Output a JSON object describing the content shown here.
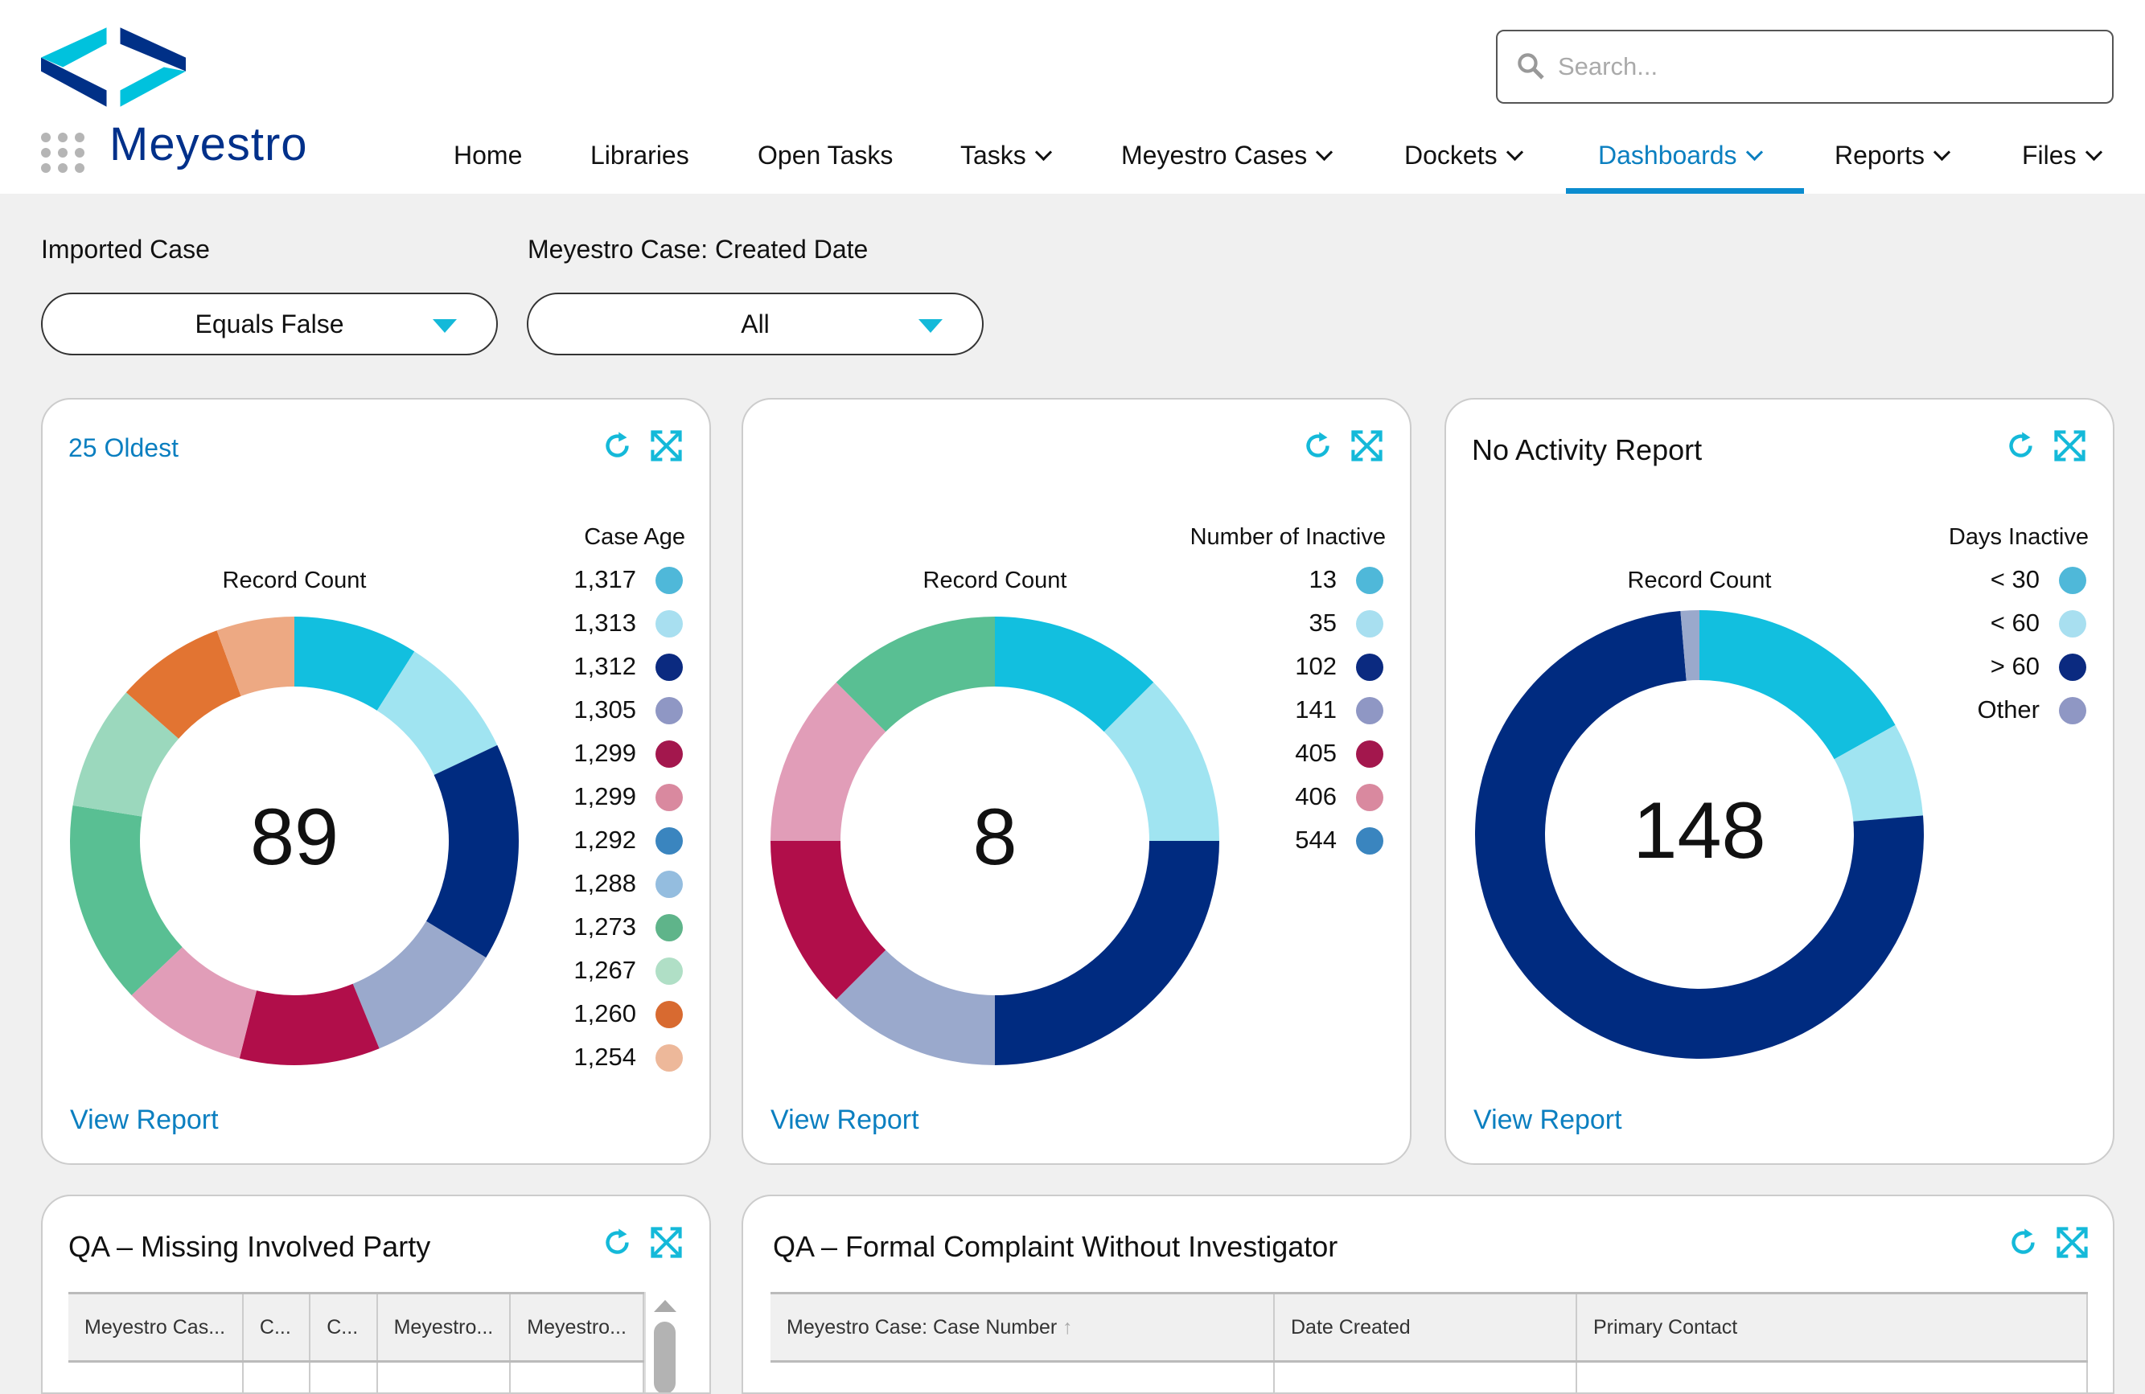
{
  "brand": {
    "name": "Meyestro"
  },
  "search": {
    "placeholder": "Search..."
  },
  "nav": [
    {
      "label": "Home"
    },
    {
      "label": "Libraries"
    },
    {
      "label": "Open Tasks"
    },
    {
      "label": "Tasks",
      "dropdown": true
    },
    {
      "label": "Meyestro Cases",
      "dropdown": true
    },
    {
      "label": "Dockets",
      "dropdown": true
    },
    {
      "label": "Dashboards",
      "dropdown": true,
      "active": true
    },
    {
      "label": "Reports",
      "dropdown": true
    },
    {
      "label": "Files",
      "dropdown": true
    }
  ],
  "filters": [
    {
      "label": "Imported Case",
      "value": "Equals False"
    },
    {
      "label": "Meyestro Case: Created Date",
      "value": "All"
    }
  ],
  "colors": {
    "accent": "#0b7fc0",
    "brand_navy": "#00308a",
    "brand_cyan": "#14b9d9"
  },
  "cards": [
    {
      "title": "25 Oldest",
      "legend_title": "Case Age",
      "measure": "Record Count",
      "total": "89",
      "view_report": "View Report",
      "legend": [
        {
          "label": "1,317",
          "color": "#4fb8d9",
          "count": 8
        },
        {
          "label": "1,313",
          "color": "#a8dff0",
          "count": 8
        },
        {
          "label": "1,312",
          "color": "#0b2a80",
          "count": 14
        },
        {
          "label": "1,305",
          "color": "#8f97c4",
          "count": 9
        },
        {
          "label": "1,299",
          "color": "#a3174d",
          "count": 9
        },
        {
          "label": "1,299",
          "color": "#d9899f",
          "count": 8
        },
        {
          "label": "1,292",
          "color": "#3a85bf",
          "count": 0
        },
        {
          "label": "1,288",
          "color": "#94bddf",
          "count": 0
        },
        {
          "label": "1,273",
          "color": "#5fb48a",
          "count": 13
        },
        {
          "label": "1,267",
          "color": "#b0dfc6",
          "count": 8
        },
        {
          "label": "1,260",
          "color": "#d86a30",
          "count": 7
        },
        {
          "label": "1,254",
          "color": "#edb89a",
          "count": 5
        }
      ],
      "segments_colors": [
        "#12bfdf",
        "#a0e4f1",
        "#002b80",
        "#9aa9cc",
        "#b10e4a",
        "#e19db8",
        "#3a85bf",
        "#94bddf",
        "#59bf93",
        "#9bd8bd",
        "#e27432",
        "#eda983"
      ]
    },
    {
      "title": "",
      "legend_title": "Number of Inactive",
      "measure": "Record Count",
      "total": "8",
      "view_report": "View Report",
      "legend": [
        {
          "label": "13",
          "color": "#4fb8d9",
          "count": 1
        },
        {
          "label": "35",
          "color": "#a8dff0",
          "count": 1
        },
        {
          "label": "102",
          "color": "#0b2a80",
          "count": 2
        },
        {
          "label": "141",
          "color": "#8f97c4",
          "count": 1
        },
        {
          "label": "405",
          "color": "#a3174d",
          "count": 1
        },
        {
          "label": "406",
          "color": "#d9899f",
          "count": 1
        },
        {
          "label": "544",
          "color": "#3a85bf",
          "count": 1
        }
      ],
      "segments_colors": [
        "#12bfdf",
        "#a0e4f1",
        "#002b80",
        "#9aa9cc",
        "#b10e4a",
        "#e19db8",
        "#59bf93"
      ]
    },
    {
      "title": "No Activity Report",
      "legend_title": "Days Inactive",
      "measure": "Record Count",
      "total": "148",
      "view_report": "View Report",
      "legend": [
        {
          "label": "< 30",
          "color": "#4fb8d9",
          "count": 25
        },
        {
          "label": "< 60",
          "color": "#a8dff0",
          "count": 10
        },
        {
          "label": "> 60",
          "color": "#0b2a80",
          "count": 111
        },
        {
          "label": "Other",
          "color": "#8f97c4",
          "count": 2
        }
      ],
      "segments_colors": [
        "#12bfdf",
        "#a0e4f1",
        "#002b80",
        "#9aa9cc"
      ]
    }
  ],
  "tables": [
    {
      "title": "QA – Missing Involved Party",
      "columns": [
        "Meyestro Cas...",
        "C...",
        "C...",
        "Meyestro...",
        "Meyestro..."
      ]
    },
    {
      "title": "QA – Formal Complaint Without Investigator",
      "columns": [
        "Meyestro Case: Case Number",
        "Date Created",
        "Primary Contact"
      ],
      "sorted_column": "Meyestro Case: Case Number"
    }
  ]
}
